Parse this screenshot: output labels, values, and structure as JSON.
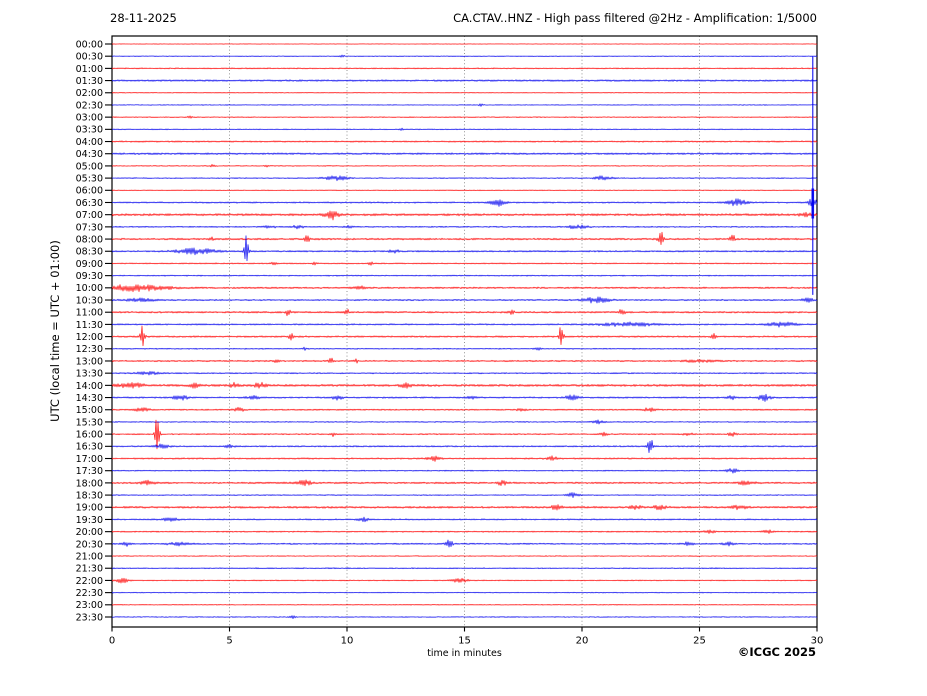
{
  "header": {
    "date": "28-11-2025",
    "title": "CA.CTAV..HNZ - High pass filtered @2Hz - Amplification: 1/5000"
  },
  "footer": {
    "xlabel": "time in minutes",
    "credit": "©ICGC 2025"
  },
  "chart_data": {
    "type": "line",
    "subtype": "helicorder-seismogram",
    "title": "CA.CTAV..HNZ - High pass filtered @2Hz - Amplification: 1/5000",
    "date": "28-11-2025",
    "xlabel": "time in minutes",
    "ylabel": "UTC (local time = UTC + 01:00)",
    "x_axis": {
      "range": [
        0,
        30
      ],
      "ticks": [
        0,
        5,
        10,
        15,
        20,
        25,
        30
      ],
      "gridlines": [
        5,
        10,
        15,
        20,
        25
      ],
      "grid_style": "dotted"
    },
    "colors": {
      "red_trace": "#ff0000",
      "blue_trace": "#0000ee",
      "grid": "#7a7a7a",
      "axis": "#000000"
    },
    "legend": "rows alternate red (hour) / blue (half hour); events = [minute, amplitude, width, down-amplitude?]",
    "rows": [
      {
        "label": "00:00",
        "noise": 0.35,
        "events": []
      },
      {
        "label": "00:30",
        "noise": 0.35,
        "events": [
          [
            9.8,
            1.5,
            1.5
          ]
        ]
      },
      {
        "label": "01:00",
        "noise": 0.55,
        "events": []
      },
      {
        "label": "01:30",
        "noise": 0.85,
        "events": []
      },
      {
        "label": "02:00",
        "noise": 0.35,
        "events": []
      },
      {
        "label": "02:30",
        "noise": 0.4,
        "events": [
          [
            15.7,
            1.2,
            1.5
          ]
        ]
      },
      {
        "label": "03:00",
        "noise": 0.45,
        "events": [
          [
            3.3,
            1.8,
            1.5
          ]
        ]
      },
      {
        "label": "03:30",
        "noise": 0.45,
        "events": [
          [
            12.3,
            1.2,
            1.5
          ]
        ]
      },
      {
        "label": "04:00",
        "noise": 0.7,
        "events": []
      },
      {
        "label": "04:30",
        "noise": 0.9,
        "events": []
      },
      {
        "label": "05:00",
        "noise": 0.45,
        "events": [
          [
            4.3,
            1.5,
            1.5
          ],
          [
            6.6,
            1.5,
            1.5
          ]
        ]
      },
      {
        "label": "05:30",
        "noise": 0.5,
        "events": [
          [
            9.5,
            2.5,
            8
          ],
          [
            20.9,
            2.2,
            6
          ]
        ]
      },
      {
        "label": "06:00",
        "noise": 0.4,
        "events": []
      },
      {
        "label": "06:30",
        "noise": 0.7,
        "events": [
          [
            16.4,
            3.5,
            5
          ],
          [
            26.6,
            3.5,
            6
          ],
          [
            29.8,
            6,
            3
          ]
        ]
      },
      {
        "label": "07:00",
        "noise": 1.1,
        "events": [
          [
            9.35,
            4.5,
            5
          ],
          [
            29.5,
            2,
            4
          ]
        ]
      },
      {
        "label": "07:30",
        "noise": 0.6,
        "events": [
          [
            6.7,
            1.5,
            4
          ],
          [
            7.9,
            1.5,
            4
          ],
          [
            10.1,
            1.5,
            3
          ],
          [
            19.8,
            1.8,
            8
          ]
        ]
      },
      {
        "label": "08:00",
        "noise": 0.9,
        "events": [
          [
            4.2,
            2,
            1.5
          ],
          [
            8.3,
            4,
            1.5
          ],
          [
            23.35,
            9,
            1.6
          ],
          [
            26.4,
            5,
            1.5
          ]
        ]
      },
      {
        "label": "08:30",
        "noise": 0.75,
        "events": [
          [
            3.6,
            2.8,
            14
          ],
          [
            5.72,
            16,
            1.4,
            12
          ],
          [
            12,
            1.5,
            4
          ]
        ]
      },
      {
        "label": "09:00",
        "noise": 0.6,
        "events": [
          [
            6.9,
            1.8,
            1.5
          ],
          [
            8.6,
            1.8,
            1.5
          ],
          [
            11,
            1.8,
            1.5
          ]
        ]
      },
      {
        "label": "09:30",
        "noise": 0.55,
        "events": []
      },
      {
        "label": "10:00",
        "noise": 0.8,
        "events": [
          [
            1.0,
            3.2,
            22
          ],
          [
            10.5,
            2,
            4
          ]
        ]
      },
      {
        "label": "10:30",
        "noise": 0.7,
        "events": [
          [
            1.2,
            1.6,
            10
          ],
          [
            20.6,
            3,
            9
          ],
          [
            29.6,
            2,
            4
          ]
        ]
      },
      {
        "label": "11:00",
        "noise": 0.85,
        "events": [
          [
            7.5,
            4,
            1.5
          ],
          [
            10,
            3,
            1.5
          ],
          [
            17,
            2,
            2
          ],
          [
            21.7,
            3.5,
            1.8
          ]
        ]
      },
      {
        "label": "11:30",
        "noise": 0.7,
        "events": [
          [
            22,
            1.8,
            20
          ],
          [
            28.5,
            2.2,
            10
          ]
        ]
      },
      {
        "label": "12:00",
        "noise": 0.8,
        "events": [
          [
            1.3,
            13,
            1.5,
            10
          ],
          [
            7.6,
            5,
            1.4
          ],
          [
            19.1,
            11,
            1.6,
            8
          ],
          [
            25.6,
            3,
            1.5
          ]
        ]
      },
      {
        "label": "12:30",
        "noise": 0.5,
        "events": [
          [
            8.2,
            1.5,
            1.5
          ],
          [
            18.1,
            2,
            2
          ]
        ]
      },
      {
        "label": "13:00",
        "noise": 0.7,
        "events": [
          [
            7,
            2,
            1.5
          ],
          [
            9.3,
            3.5,
            1.5
          ],
          [
            10.4,
            2,
            1.5
          ],
          [
            25,
            1.2,
            12
          ]
        ]
      },
      {
        "label": "13:30",
        "noise": 0.6,
        "events": [
          [
            1.5,
            1.8,
            8
          ]
        ]
      },
      {
        "label": "14:00",
        "noise": 1.1,
        "events": [
          [
            0.8,
            2.5,
            8
          ],
          [
            3.5,
            2.5,
            3
          ],
          [
            5.2,
            2,
            3
          ],
          [
            6.3,
            2.5,
            4
          ],
          [
            12.5,
            2,
            4
          ]
        ]
      },
      {
        "label": "14:30",
        "noise": 0.75,
        "events": [
          [
            2.9,
            2.8,
            5
          ],
          [
            6,
            1.8,
            4
          ],
          [
            9.6,
            2,
            4
          ],
          [
            15.3,
            1.8,
            3
          ],
          [
            19.6,
            2.5,
            5
          ],
          [
            26.4,
            1.8,
            3
          ],
          [
            27.75,
            3.5,
            4
          ]
        ]
      },
      {
        "label": "15:00",
        "noise": 0.65,
        "events": [
          [
            1.3,
            2,
            5
          ],
          [
            5.4,
            2,
            4
          ],
          [
            17.4,
            1.8,
            3
          ],
          [
            22.9,
            2.2,
            4
          ]
        ]
      },
      {
        "label": "15:30",
        "noise": 0.55,
        "events": [
          [
            20.7,
            1.8,
            4
          ]
        ]
      },
      {
        "label": "16:00",
        "noise": 0.6,
        "events": [
          [
            1.92,
            21,
            1.5,
            17
          ],
          [
            9.4,
            2,
            2
          ],
          [
            20.9,
            1.8,
            3
          ],
          [
            24.5,
            1.8,
            3
          ],
          [
            26.4,
            2,
            3
          ]
        ]
      },
      {
        "label": "16:30",
        "noise": 0.7,
        "events": [
          [
            2.1,
            1.8,
            5
          ],
          [
            5,
            1.5,
            3
          ],
          [
            22.9,
            13,
            1.5,
            9
          ]
        ]
      },
      {
        "label": "17:00",
        "noise": 0.7,
        "events": [
          [
            13.7,
            2.5,
            4
          ],
          [
            18.7,
            2.2,
            4
          ]
        ]
      },
      {
        "label": "17:30",
        "noise": 0.5,
        "events": [
          [
            26.4,
            2.2,
            4
          ]
        ]
      },
      {
        "label": "18:00",
        "noise": 0.85,
        "events": [
          [
            1.6,
            2.2,
            6
          ],
          [
            8.2,
            2.5,
            5
          ],
          [
            16.6,
            2,
            4
          ],
          [
            27,
            2,
            5
          ]
        ]
      },
      {
        "label": "18:30",
        "noise": 0.5,
        "events": [
          [
            19.6,
            2.2,
            4
          ]
        ]
      },
      {
        "label": "19:00",
        "noise": 1.0,
        "events": [
          [
            18.9,
            2,
            4
          ],
          [
            22.3,
            1.8,
            4
          ],
          [
            23.3,
            2,
            4
          ],
          [
            26.7,
            2,
            5
          ]
        ]
      },
      {
        "label": "19:30",
        "noise": 0.65,
        "events": [
          [
            2.5,
            1.6,
            6
          ],
          [
            10.7,
            1.8,
            4
          ]
        ]
      },
      {
        "label": "20:00",
        "noise": 0.6,
        "events": [
          [
            25.4,
            1.6,
            4
          ],
          [
            27.9,
            1.6,
            4
          ]
        ]
      },
      {
        "label": "20:30",
        "noise": 0.7,
        "events": [
          [
            0.6,
            2,
            3
          ],
          [
            2.8,
            1.5,
            8
          ],
          [
            14.35,
            4.5,
            2.2
          ],
          [
            24.5,
            1.6,
            4
          ],
          [
            26.2,
            1.6,
            4
          ]
        ]
      },
      {
        "label": "21:00",
        "noise": 0.45,
        "events": []
      },
      {
        "label": "21:30",
        "noise": 0.5,
        "events": []
      },
      {
        "label": "22:00",
        "noise": 0.5,
        "events": [
          [
            0.45,
            2.8,
            4
          ],
          [
            14.8,
            2.5,
            5
          ]
        ]
      },
      {
        "label": "22:30",
        "noise": 0.45,
        "events": []
      },
      {
        "label": "23:00",
        "noise": 0.4,
        "events": []
      },
      {
        "label": "23:30",
        "noise": 0.45,
        "events": [
          [
            7.7,
            1.2,
            2
          ]
        ]
      }
    ],
    "clipped_event": {
      "row": "06:30",
      "t_min": 29.82,
      "top_row": "00:30",
      "bottom_row": "10:00",
      "color": "#0000ee"
    }
  }
}
